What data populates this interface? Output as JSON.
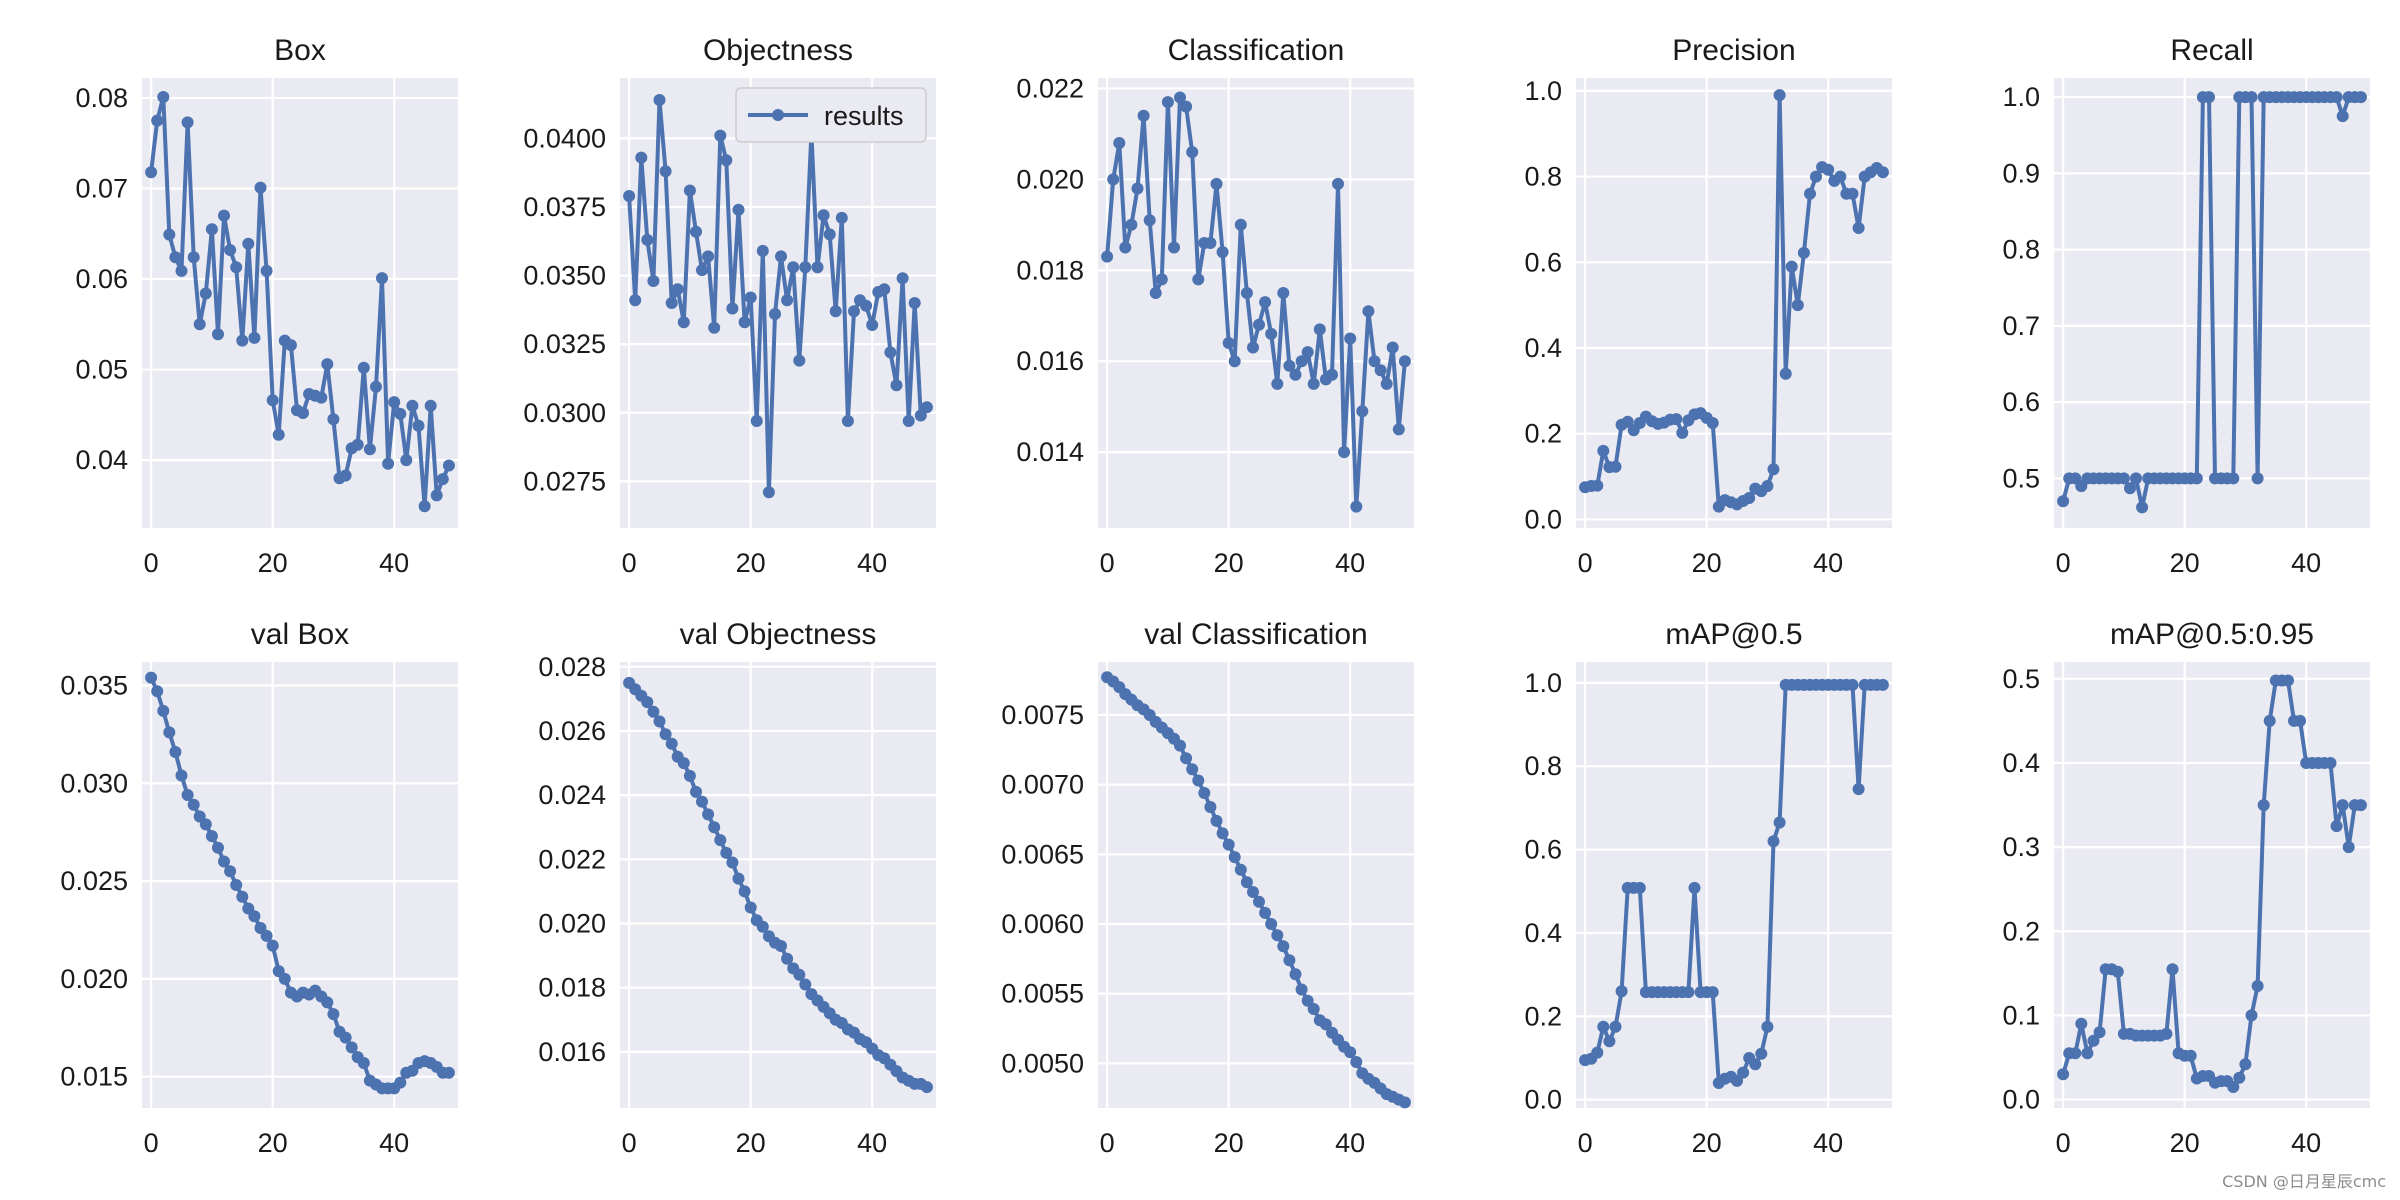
{
  "watermark": "CSDN @日月星辰cmc",
  "legend_label": "results",
  "colors": {
    "line": "#4c72b0",
    "panel": "#eaeaf2",
    "grid": "#ffffff",
    "text": "#1a1a1a"
  },
  "chart_data": [
    {
      "type": "line",
      "title": "Box",
      "xlim": [
        -1.5,
        50.5
      ],
      "ylim": [
        0.0325,
        0.0822
      ],
      "xticks": [
        0,
        20,
        40
      ],
      "yticks": [
        0.04,
        0.05,
        0.06,
        0.07,
        0.08
      ],
      "ytick_labels": [
        "0.04",
        "0.05",
        "0.06",
        "0.07",
        "0.08"
      ],
      "values": [
        0.0718,
        0.0775,
        0.0801,
        0.0649,
        0.0624,
        0.0609,
        0.0773,
        0.0624,
        0.055,
        0.0584,
        0.0655,
        0.0539,
        0.067,
        0.0632,
        0.0613,
        0.0532,
        0.0639,
        0.0535,
        0.0701,
        0.0609,
        0.0466,
        0.0428,
        0.0532,
        0.0527,
        0.0455,
        0.0452,
        0.0473,
        0.0471,
        0.0469,
        0.0506,
        0.0445,
        0.038,
        0.0383,
        0.0413,
        0.0417,
        0.0502,
        0.0412,
        0.0481,
        0.0601,
        0.0396,
        0.0464,
        0.0451,
        0.04,
        0.046,
        0.0438,
        0.0349,
        0.046,
        0.0361,
        0.0379,
        0.0394
      ]
    },
    {
      "type": "line",
      "title": "Objectness",
      "xlim": [
        -1.5,
        50.5
      ],
      "ylim": [
        0.0258,
        0.0422
      ],
      "xticks": [
        0,
        20,
        40
      ],
      "yticks": [
        0.0275,
        0.03,
        0.0325,
        0.035,
        0.0375,
        0.04
      ],
      "ytick_labels": [
        "0.0275",
        "0.0300",
        "0.0325",
        "0.0350",
        "0.0375",
        "0.0400"
      ],
      "legend": "results",
      "values": [
        0.0379,
        0.0341,
        0.0393,
        0.0363,
        0.0348,
        0.0414,
        0.0388,
        0.034,
        0.0345,
        0.0333,
        0.0381,
        0.0366,
        0.0352,
        0.0357,
        0.0331,
        0.0401,
        0.0392,
        0.0338,
        0.0374,
        0.0333,
        0.0342,
        0.0297,
        0.0359,
        0.0271,
        0.0336,
        0.0357,
        0.0341,
        0.0353,
        0.0319,
        0.0353,
        0.0402,
        0.0353,
        0.0372,
        0.0365,
        0.0337,
        0.0371,
        0.0297,
        0.0337,
        0.0341,
        0.0339,
        0.0332,
        0.0344,
        0.0345,
        0.0322,
        0.031,
        0.0349,
        0.0297,
        0.034,
        0.0299,
        0.0302
      ]
    },
    {
      "type": "line",
      "title": "Classification",
      "xlim": [
        -1.5,
        50.5
      ],
      "ylim": [
        0.01233,
        0.02223
      ],
      "xticks": [
        0,
        20,
        40
      ],
      "yticks": [
        0.014,
        0.016,
        0.018,
        0.02,
        0.022
      ],
      "ytick_labels": [
        "0.014",
        "0.016",
        "0.018",
        "0.020",
        "0.022"
      ],
      "values": [
        0.0183,
        0.02,
        0.0208,
        0.0185,
        0.019,
        0.0198,
        0.0214,
        0.0191,
        0.0175,
        0.0178,
        0.0217,
        0.0185,
        0.0218,
        0.0216,
        0.0206,
        0.0178,
        0.0186,
        0.0186,
        0.0199,
        0.0184,
        0.0164,
        0.016,
        0.019,
        0.0175,
        0.0163,
        0.0168,
        0.0173,
        0.0166,
        0.0155,
        0.0175,
        0.0159,
        0.0157,
        0.016,
        0.0162,
        0.0155,
        0.0167,
        0.0156,
        0.0157,
        0.0199,
        0.014,
        0.0165,
        0.0128,
        0.0149,
        0.0171,
        0.016,
        0.0158,
        0.0155,
        0.0163,
        0.0145,
        0.016
      ]
    },
    {
      "type": "line",
      "title": "Precision",
      "xlim": [
        -1.5,
        50.5
      ],
      "ylim": [
        -0.02,
        1.03
      ],
      "xticks": [
        0,
        20,
        40
      ],
      "yticks": [
        0,
        0.2,
        0.4,
        0.6,
        0.8,
        1.0
      ],
      "ytick_labels": [
        "0.0",
        "0.2",
        "0.4",
        "0.6",
        "0.8",
        "1.0"
      ],
      "values": [
        0.075,
        0.078,
        0.079,
        0.16,
        0.122,
        0.123,
        0.221,
        0.228,
        0.208,
        0.225,
        0.24,
        0.229,
        0.223,
        0.226,
        0.233,
        0.234,
        0.202,
        0.231,
        0.245,
        0.248,
        0.237,
        0.225,
        0.03,
        0.045,
        0.04,
        0.035,
        0.043,
        0.05,
        0.072,
        0.066,
        0.078,
        0.117,
        0.99,
        0.34,
        0.59,
        0.5,
        0.622,
        0.76,
        0.8,
        0.822,
        0.816,
        0.79,
        0.8,
        0.76,
        0.76,
        0.68,
        0.8,
        0.81,
        0.82,
        0.81
      ]
    },
    {
      "type": "line",
      "title": "Recall",
      "xlim": [
        -1.5,
        50.5
      ],
      "ylim": [
        0.435,
        1.025
      ],
      "xticks": [
        0,
        20,
        40
      ],
      "yticks": [
        0.5,
        0.6,
        0.7,
        0.8,
        0.9,
        1.0
      ],
      "ytick_labels": [
        "0.5",
        "0.6",
        "0.7",
        "0.8",
        "0.9",
        "1.0"
      ],
      "values": [
        0.47,
        0.5,
        0.5,
        0.49,
        0.5,
        0.5,
        0.5,
        0.5,
        0.5,
        0.5,
        0.5,
        0.487,
        0.5,
        0.462,
        0.5,
        0.5,
        0.5,
        0.5,
        0.5,
        0.5,
        0.5,
        0.5,
        0.5,
        1.0,
        1.0,
        0.5,
        0.5,
        0.5,
        0.5,
        1.0,
        1.0,
        1.0,
        0.5,
        1.0,
        1.0,
        1.0,
        1.0,
        1.0,
        1.0,
        1.0,
        1.0,
        1.0,
        1.0,
        1.0,
        1.0,
        1.0,
        0.975,
        1.0,
        1.0,
        1.0
      ]
    },
    {
      "type": "line",
      "title": "val Box",
      "xlim": [
        -1.5,
        50.5
      ],
      "ylim": [
        0.0134,
        0.0362
      ],
      "xticks": [
        0,
        20,
        40
      ],
      "yticks": [
        0.015,
        0.02,
        0.025,
        0.03,
        0.035
      ],
      "ytick_labels": [
        "0.015",
        "0.020",
        "0.025",
        "0.030",
        "0.035"
      ],
      "values": [
        0.0354,
        0.0347,
        0.0337,
        0.0326,
        0.0316,
        0.0304,
        0.0294,
        0.0289,
        0.0283,
        0.0279,
        0.0273,
        0.0267,
        0.026,
        0.0255,
        0.0248,
        0.0242,
        0.0236,
        0.0232,
        0.0226,
        0.0222,
        0.0217,
        0.0204,
        0.02,
        0.0193,
        0.0191,
        0.0193,
        0.0192,
        0.0194,
        0.0191,
        0.0188,
        0.0182,
        0.0173,
        0.017,
        0.0165,
        0.016,
        0.0157,
        0.0148,
        0.0146,
        0.0144,
        0.0144,
        0.0144,
        0.0147,
        0.0152,
        0.0153,
        0.0157,
        0.0158,
        0.0157,
        0.0155,
        0.0152,
        0.0152
      ]
    },
    {
      "type": "line",
      "title": "val Objectness",
      "xlim": [
        -1.5,
        50.5
      ],
      "ylim": [
        0.01425,
        0.02815
      ],
      "xticks": [
        0,
        20,
        40
      ],
      "yticks": [
        0.016,
        0.018,
        0.02,
        0.022,
        0.024,
        0.026,
        0.028
      ],
      "ytick_labels": [
        "0.016",
        "0.018",
        "0.020",
        "0.022",
        "0.024",
        "0.026",
        "0.028"
      ],
      "values": [
        0.0275,
        0.0273,
        0.0271,
        0.0269,
        0.0266,
        0.0263,
        0.0259,
        0.0256,
        0.0252,
        0.025,
        0.0246,
        0.0241,
        0.0238,
        0.0234,
        0.023,
        0.0226,
        0.0222,
        0.0219,
        0.0214,
        0.021,
        0.0205,
        0.0201,
        0.0199,
        0.0196,
        0.0194,
        0.0193,
        0.0189,
        0.0186,
        0.0184,
        0.0181,
        0.0178,
        0.0176,
        0.0174,
        0.0172,
        0.017,
        0.0169,
        0.0167,
        0.0166,
        0.0164,
        0.0163,
        0.0161,
        0.0159,
        0.0158,
        0.0156,
        0.0154,
        0.0152,
        0.0151,
        0.015,
        0.015,
        0.0149
      ]
    },
    {
      "type": "line",
      "title": "val Classification",
      "xlim": [
        -1.5,
        50.5
      ],
      "ylim": [
        0.00468,
        0.00788
      ],
      "xticks": [
        0,
        20,
        40
      ],
      "yticks": [
        0.005,
        0.0055,
        0.006,
        0.0065,
        0.007,
        0.0075
      ],
      "ytick_labels": [
        "0.0050",
        "0.0055",
        "0.0060",
        "0.0065",
        "0.0070",
        "0.0075"
      ],
      "values": [
        0.00777,
        0.00774,
        0.0077,
        0.00765,
        0.00761,
        0.00757,
        0.00754,
        0.0075,
        0.00745,
        0.00741,
        0.00737,
        0.00733,
        0.00728,
        0.00719,
        0.00711,
        0.00703,
        0.00694,
        0.00684,
        0.00674,
        0.00665,
        0.00657,
        0.00648,
        0.00639,
        0.0063,
        0.00623,
        0.00616,
        0.00608,
        0.006,
        0.00592,
        0.00584,
        0.00574,
        0.00564,
        0.00553,
        0.00545,
        0.00539,
        0.00531,
        0.00528,
        0.00522,
        0.00517,
        0.00512,
        0.00508,
        0.00501,
        0.00493,
        0.00489,
        0.00486,
        0.00482,
        0.00478,
        0.00476,
        0.00474,
        0.00472
      ]
    },
    {
      "type": "line",
      "title": "mAP@0.5",
      "xlim": [
        -1.5,
        50.5
      ],
      "ylim": [
        -0.02,
        1.05
      ],
      "xticks": [
        0,
        20,
        40
      ],
      "yticks": [
        0,
        0.2,
        0.4,
        0.6,
        0.8,
        1.0
      ],
      "ytick_labels": [
        "0.0",
        "0.2",
        "0.4",
        "0.6",
        "0.8",
        "1.0"
      ],
      "values": [
        0.095,
        0.098,
        0.113,
        0.175,
        0.14,
        0.175,
        0.26,
        0.508,
        0.508,
        0.508,
        0.258,
        0.258,
        0.258,
        0.258,
        0.258,
        0.258,
        0.258,
        0.258,
        0.508,
        0.258,
        0.258,
        0.258,
        0.04,
        0.05,
        0.055,
        0.045,
        0.065,
        0.1,
        0.085,
        0.11,
        0.175,
        0.62,
        0.665,
        0.995,
        0.995,
        0.995,
        0.995,
        0.995,
        0.995,
        0.995,
        0.995,
        0.995,
        0.995,
        0.995,
        0.995,
        0.745,
        0.995,
        0.995,
        0.995,
        0.995
      ]
    },
    {
      "type": "line",
      "title": "mAP@0.5:0.95",
      "xlim": [
        -1.5,
        50.5
      ],
      "ylim": [
        -0.01,
        0.52
      ],
      "xticks": [
        0,
        20,
        40
      ],
      "yticks": [
        0,
        0.1,
        0.2,
        0.3,
        0.4,
        0.5
      ],
      "ytick_labels": [
        "0.0",
        "0.1",
        "0.2",
        "0.3",
        "0.4",
        "0.5"
      ],
      "values": [
        0.03,
        0.055,
        0.055,
        0.09,
        0.055,
        0.07,
        0.08,
        0.155,
        0.155,
        0.152,
        0.078,
        0.078,
        0.076,
        0.076,
        0.076,
        0.076,
        0.076,
        0.078,
        0.155,
        0.055,
        0.052,
        0.052,
        0.025,
        0.028,
        0.028,
        0.02,
        0.022,
        0.022,
        0.015,
        0.026,
        0.042,
        0.1,
        0.135,
        0.35,
        0.45,
        0.498,
        0.498,
        0.498,
        0.45,
        0.45,
        0.4,
        0.4,
        0.4,
        0.4,
        0.4,
        0.325,
        0.35,
        0.3,
        0.35,
        0.35
      ]
    }
  ]
}
